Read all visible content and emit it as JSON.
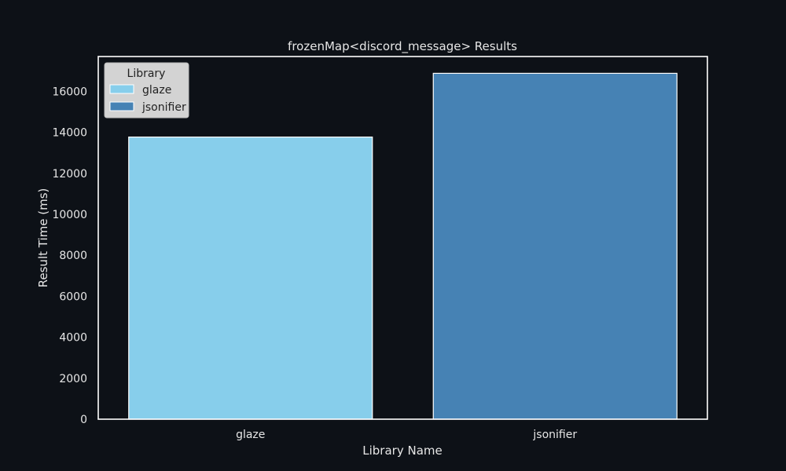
{
  "chart_data": {
    "type": "bar",
    "title": "frozenMap<discord_message> Results",
    "xlabel": "Library Name",
    "ylabel": "Result Time (ms)",
    "categories": [
      "glaze",
      "jsonifier"
    ],
    "values": [
      13770,
      16880
    ],
    "colors": [
      "#87ceeb",
      "#4682b4"
    ],
    "ylim": [
      0,
      17700
    ],
    "yticks": [
      0,
      2000,
      4000,
      6000,
      8000,
      10000,
      12000,
      14000,
      16000
    ],
    "grid": false,
    "legend": {
      "title": "Library",
      "placement": "top-left",
      "entries": [
        "glaze",
        "jsonifier"
      ]
    }
  },
  "colors": {
    "background": "#0d1117",
    "axes_edge": "#ffffff",
    "text": "#e6e6e6",
    "legend_bg": "#d3d3d3",
    "legend_text": "#222222"
  }
}
